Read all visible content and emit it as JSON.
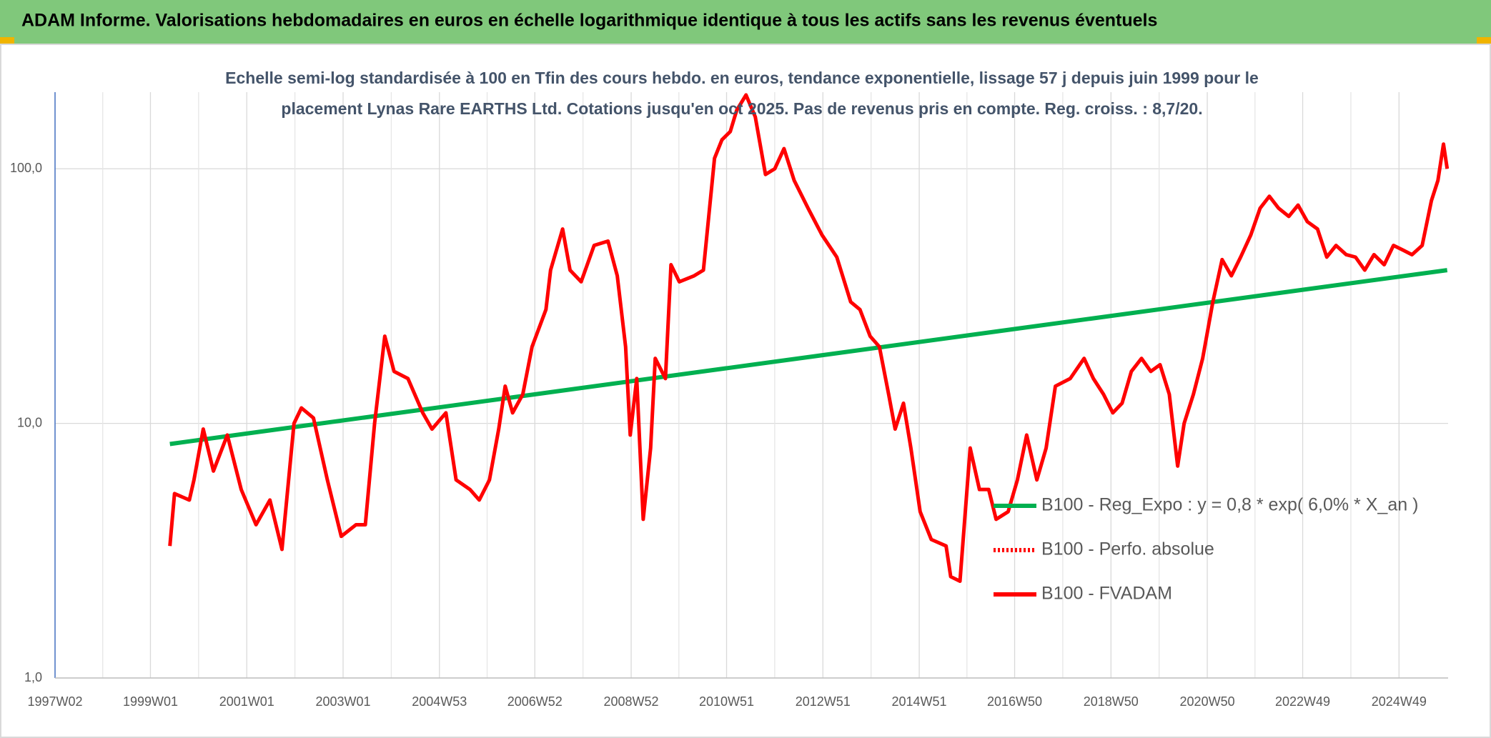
{
  "chart_data": {
    "type": "line",
    "title": "ADAM Informe. Valorisations hebdomadaires en euros en échelle logarithmique identique à tous les actifs sans les revenus éventuels",
    "subtitle": "Echelle semi-log standardisée à 100 en Tfin des cours hebdo. en euros, tendance exponentielle, lissage 57 j depuis juin 1999 pour le placement Lynas Rare EARTHS Ltd. Cotations jusqu'en oct 2025. Pas de revenus pris en compte. Reg. croiss. : 8,7/20.",
    "xlim": [
      "1997W02",
      "2025W50"
    ],
    "xticks": [
      "1997W02",
      "1999W01",
      "2001W01",
      "2003W01",
      "2004W53",
      "2006W52",
      "2008W52",
      "2010W51",
      "2012W51",
      "2014W51",
      "2016W50",
      "2018W50",
      "2020W50",
      "2022W49",
      "2024W49"
    ],
    "ylim": [
      1,
      200
    ],
    "yscale": "log",
    "yticks": [
      {
        "value": 1,
        "label": "1,0"
      },
      {
        "value": 10,
        "label": "10,0"
      },
      {
        "value": 100,
        "label": "100,0"
      }
    ],
    "grid": true,
    "series": [
      {
        "name": "B100 - Reg_Expo : y = 0,8 * exp( 6,0% *  X_an )",
        "color": "#00b050",
        "style": "solid",
        "x": [
          "1999W22",
          "2025W49"
        ],
        "values": [
          8.3,
          40
        ]
      },
      {
        "name": "B100 - Perfo. absolue",
        "color": "#ff0000",
        "style": "dotted",
        "x": [],
        "values": []
      },
      {
        "name": "B100 - FVADAM",
        "color": "#ff0000",
        "style": "solid",
        "x": [
          "1999W22",
          "1999W27",
          "1999W43",
          "1999W48",
          "2000W6",
          "2000W17",
          "2000W32",
          "2000W47",
          "2001W11",
          "2001W26",
          "2001W39",
          "2001W52",
          "2002W8",
          "2002W21",
          "2002W36",
          "2002W51",
          "2003W15",
          "2003W25",
          "2003W35",
          "2003W46",
          "2004W4",
          "2004W19",
          "2004W35",
          "2004W45",
          "2005W8",
          "2005W19",
          "2005W34",
          "2005W44",
          "2006W3",
          "2006W13",
          "2006W20",
          "2006W28",
          "2006W39",
          "2006W49",
          "2007W12",
          "2007W17",
          "2007W30",
          "2007W38",
          "2007W50",
          "2008W12",
          "2008W27",
          "2008W37",
          "2008W46",
          "2008W51",
          "2009W6",
          "2009W13",
          "2009W21",
          "2009W26",
          "2009W37",
          "2009W43",
          "2009W52",
          "2010W16",
          "2010W26",
          "2010W38",
          "2010W46",
          "2011W3",
          "2011W10",
          "2011W20",
          "2011W30",
          "2011W41",
          "2011W51",
          "2012W9",
          "2012W20",
          "2012W35",
          "2012W50",
          "2013W14",
          "2013W29",
          "2013W39",
          "2013W50",
          "2014W8",
          "2014W18",
          "2014W25",
          "2014W34",
          "2014W42",
          "2014W52",
          "2015W12",
          "2015W28",
          "2015W33",
          "2015W43",
          "2016W2",
          "2016W12",
          "2016W22",
          "2016W30",
          "2016W43",
          "2017W1",
          "2017W11",
          "2017W22",
          "2017W32",
          "2017W42",
          "2018W6",
          "2018W21",
          "2018W31",
          "2018W42",
          "2018W52",
          "2019W10",
          "2019W20",
          "2019W31",
          "2019W41",
          "2019W51",
          "2020W9",
          "2020W18",
          "2020W25",
          "2020W35",
          "2020W45",
          "2021W4",
          "2021W14",
          "2021W24",
          "2021W34",
          "2021W45",
          "2022W3",
          "2022W13",
          "2022W23",
          "2022W34",
          "2022W44",
          "2023W2",
          "2023W13",
          "2023W23",
          "2023W33",
          "2023W44",
          "2024W2",
          "2024W12",
          "2024W22",
          "2024W33",
          "2024W43",
          "2025W1",
          "2025W11",
          "2025W22",
          "2025W32",
          "2025W39",
          "2025W45",
          "2025W49"
        ],
        "values": [
          3.3,
          5.3,
          5.0,
          6.0,
          9.5,
          6.5,
          9.0,
          5.5,
          4.0,
          5.0,
          3.2,
          10.0,
          11.5,
          10.5,
          6.0,
          3.6,
          4.0,
          4.0,
          10.0,
          22.0,
          16.0,
          15.0,
          11.0,
          9.5,
          11.0,
          6.0,
          5.5,
          5.0,
          6.0,
          9.5,
          14.0,
          11.0,
          13.0,
          20.0,
          28.0,
          40.0,
          58.0,
          40.0,
          36.0,
          50.0,
          52.0,
          38.0,
          20.0,
          9.0,
          15.0,
          4.2,
          8.0,
          18.0,
          15.0,
          42.0,
          36.0,
          38.0,
          40.0,
          110.0,
          130.0,
          140.0,
          170.0,
          195.0,
          160.0,
          95.0,
          100.0,
          120.0,
          90.0,
          70.0,
          55.0,
          45.0,
          30.0,
          28.0,
          22.0,
          20.0,
          13.0,
          9.5,
          12.0,
          8.0,
          4.5,
          3.5,
          3.3,
          2.5,
          2.4,
          8.0,
          5.5,
          5.5,
          4.2,
          4.5,
          6.0,
          9.0,
          6.0,
          8.0,
          14.0,
          15.0,
          18.0,
          15.0,
          13.0,
          11.0,
          12.0,
          16.0,
          18.0,
          16.0,
          17.0,
          13.0,
          6.8,
          10.0,
          13.0,
          18.0,
          30.0,
          44.0,
          38.0,
          45.0,
          55.0,
          70.0,
          78.0,
          70.0,
          65.0,
          72.0,
          62.0,
          58.0,
          45.0,
          50.0,
          46.0,
          45.0,
          40.0,
          46.0,
          42.0,
          50.0,
          48.0,
          46.0,
          50.0,
          75.0,
          90.0,
          125.0,
          100.0
        ]
      }
    ]
  }
}
